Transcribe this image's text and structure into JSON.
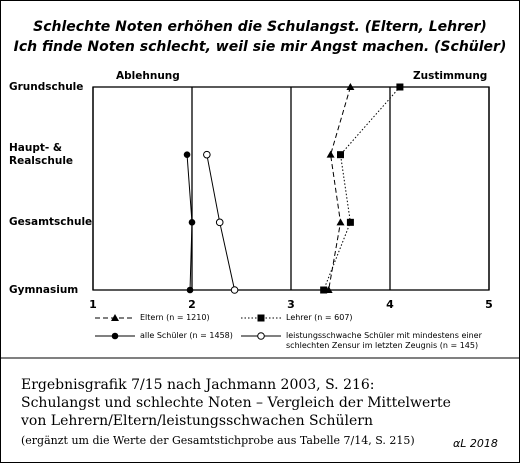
{
  "chart_data": {
    "type": "line",
    "title": "Schlechte Noten erhöhen die Schulangst. (Eltern, Lehrer)",
    "subtitle": "Ich finde Noten schlecht, weil sie mir Angst machen. (Schüler)",
    "left_label": "Ablehnung",
    "right_label": "Zustimmung",
    "categories": [
      "Grundschule",
      "Haupt- &\nRealschule",
      "Gesamtschule",
      "Gymnasium"
    ],
    "xlim": [
      1,
      5
    ],
    "xticks": [
      1,
      2,
      3,
      4,
      5
    ],
    "series": [
      {
        "name": "Eltern (n = 1210)",
        "color": "#000000",
        "dash": "5,3",
        "marker": "triangle",
        "values": [
          3.6,
          3.4,
          3.5,
          3.38
        ]
      },
      {
        "name": "Lehrer (n = 607)",
        "color": "#000000",
        "dash": "1.5,2",
        "marker": "square",
        "values": [
          4.1,
          3.5,
          3.6,
          3.33
        ]
      },
      {
        "name": "alle Schüler (n = 1458)",
        "color": "#000000",
        "dash": "none",
        "marker": "circle",
        "values": [
          null,
          1.95,
          2.0,
          1.98
        ]
      },
      {
        "name": "leistungsschwache Schüler mit mindestens einer schlechten Zensur im letzten Zeugnis (n = 145)",
        "color": "#000000",
        "dash": "none",
        "marker": "open-circle",
        "values": [
          null,
          2.15,
          2.28,
          2.43
        ]
      }
    ],
    "caption_lines": [
      "Ergebnisgrafik 7/15 nach Jachmann 2003, S. 216:",
      "Schulangst und schlechte Noten – Vergleich der Mittelwerte",
      "von Lehrern/Eltern/leistungsschwachen Schülern"
    ],
    "footnote": "(ergänzt um die Werte der Gesamtstichprobe aus Tabelle 7/14, S. 215)",
    "signature": "αL 2018"
  }
}
